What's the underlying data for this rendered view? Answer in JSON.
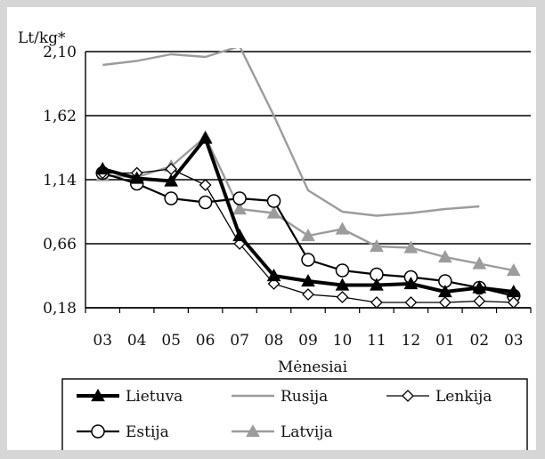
{
  "chart_data": {
    "type": "line",
    "ylabel": "Lt/kg*",
    "xlabel": "Mėnesiai",
    "categories": [
      "03",
      "04",
      "05",
      "06",
      "07",
      "08",
      "09",
      "10",
      "11",
      "12",
      "01",
      "02",
      "03"
    ],
    "yticks": [
      "2,10",
      "1,62",
      "1,14",
      "0,66",
      "0,18"
    ],
    "ylim": [
      0.18,
      2.1
    ],
    "grid": true,
    "legend_position": "bottom",
    "series": [
      {
        "name": "Lietuva",
        "color": "#000000",
        "marker": "triangle-filled",
        "values": [
          1.22,
          1.15,
          1.13,
          1.45,
          0.72,
          0.42,
          0.38,
          0.35,
          0.35,
          0.36,
          0.3,
          0.33,
          0.3
        ]
      },
      {
        "name": "Rusija",
        "color": "#9c9c9c",
        "marker": "none",
        "values": [
          2.0,
          2.03,
          2.08,
          2.06,
          2.15,
          1.62,
          1.06,
          0.9,
          0.87,
          0.89,
          0.92,
          0.94,
          null
        ]
      },
      {
        "name": "Lenkija",
        "color": "#000000",
        "marker": "diamond-open",
        "values": [
          1.19,
          1.19,
          1.22,
          1.1,
          0.66,
          0.36,
          0.28,
          0.26,
          0.22,
          0.22,
          0.22,
          0.23,
          0.22
        ]
      },
      {
        "name": "Estija",
        "color": "#000000",
        "marker": "circle-open",
        "values": [
          1.19,
          1.11,
          1.0,
          0.97,
          1.0,
          0.98,
          0.54,
          0.46,
          0.43,
          0.41,
          0.38,
          0.33,
          0.27
        ]
      },
      {
        "name": "Latvija",
        "color": "#9c9c9c",
        "marker": "triangle-filled",
        "values": [
          1.17,
          1.16,
          1.24,
          1.46,
          0.92,
          0.89,
          0.72,
          0.77,
          0.64,
          0.63,
          0.56,
          0.51,
          0.46
        ]
      }
    ]
  }
}
